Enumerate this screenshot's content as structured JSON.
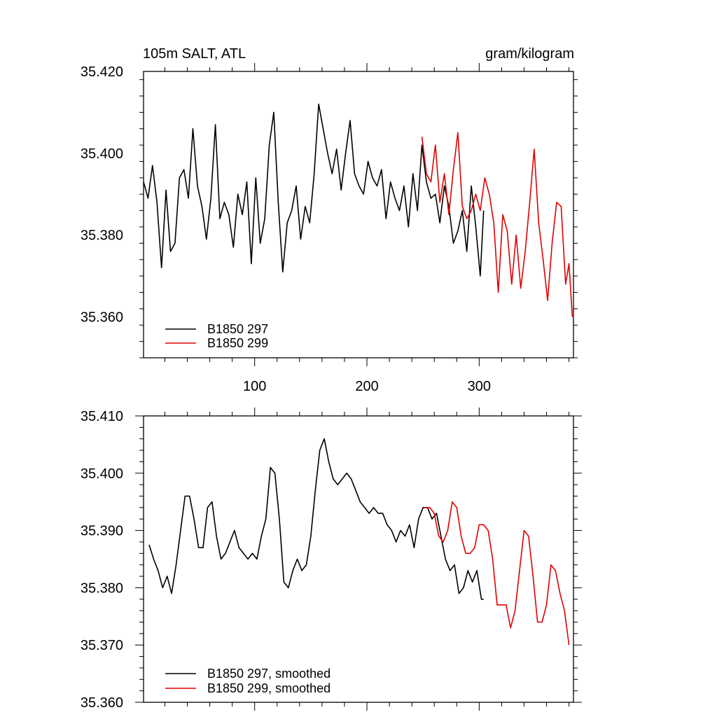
{
  "chart_data": [
    {
      "type": "line",
      "title": "105m SALT, ATL",
      "units_label": "gram/kilogram",
      "xlabel": "",
      "ylabel": "",
      "xlim": [
        1,
        384
      ],
      "ylim": [
        35.35,
        35.42
      ],
      "y_ticks": [
        35.36,
        35.38,
        35.4,
        35.42
      ],
      "y_tick_labels": [
        "35.360",
        "35.380",
        "35.400",
        "35.420"
      ],
      "x_ticks": [
        100,
        200,
        300
      ],
      "x_tick_labels": [
        "100",
        "200",
        "300"
      ],
      "legend_position": "bottom-left",
      "series": [
        {
          "name": "B1850 297",
          "color": "#000000",
          "x": [
            1,
            5,
            9,
            13,
            17,
            21,
            25,
            29,
            33,
            37,
            41,
            45,
            49,
            53,
            57,
            61,
            65,
            69,
            73,
            77,
            81,
            85,
            89,
            93,
            97,
            101,
            105,
            109,
            113,
            117,
            121,
            125,
            129,
            133,
            137,
            141,
            145,
            149,
            153,
            157,
            161,
            165,
            169,
            173,
            177,
            181,
            185,
            189,
            193,
            197,
            201,
            205,
            209,
            213,
            217,
            221,
            225,
            229,
            233,
            237,
            241,
            245,
            249,
            253,
            257,
            261,
            265,
            269,
            273,
            277,
            281,
            285,
            289,
            293,
            297,
            301,
            304
          ],
          "values": [
            35.393,
            35.389,
            35.397,
            35.388,
            35.372,
            35.391,
            35.376,
            35.378,
            35.394,
            35.396,
            35.389,
            35.406,
            35.392,
            35.387,
            35.379,
            35.389,
            35.407,
            35.384,
            35.388,
            35.385,
            35.377,
            35.39,
            35.385,
            35.393,
            35.373,
            35.394,
            35.378,
            35.384,
            35.402,
            35.41,
            35.388,
            35.371,
            35.383,
            35.386,
            35.392,
            35.379,
            35.387,
            35.383,
            35.395,
            35.412,
            35.406,
            35.4,
            35.395,
            35.401,
            35.391,
            35.4,
            35.408,
            35.395,
            35.392,
            35.39,
            35.398,
            35.394,
            35.392,
            35.396,
            35.384,
            35.393,
            35.389,
            35.386,
            35.392,
            35.382,
            35.395,
            35.386,
            35.402,
            35.393,
            35.389,
            35.39,
            35.383,
            35.392,
            35.387,
            35.378,
            35.381,
            35.386,
            35.376,
            35.392,
            35.382,
            35.37,
            35.386
          ]
        },
        {
          "name": "B1850 299",
          "color": "#e00000",
          "x": [
            249,
            253,
            257,
            261,
            265,
            269,
            273,
            277,
            281,
            285,
            289,
            293,
            297,
            301,
            305,
            309,
            313,
            317,
            321,
            325,
            329,
            333,
            337,
            341,
            345,
            349,
            353,
            357,
            361,
            365,
            369,
            373,
            377,
            380,
            383
          ],
          "values": [
            35.404,
            35.395,
            35.393,
            35.402,
            35.388,
            35.395,
            35.385,
            35.396,
            35.405,
            35.387,
            35.384,
            35.386,
            35.39,
            35.386,
            35.394,
            35.39,
            35.383,
            35.366,
            35.385,
            35.381,
            35.368,
            35.38,
            35.367,
            35.376,
            35.388,
            35.401,
            35.383,
            35.374,
            35.364,
            35.378,
            35.388,
            35.387,
            35.368,
            35.373,
            35.36
          ]
        }
      ]
    },
    {
      "type": "line",
      "title": "",
      "xlabel": "",
      "ylabel": "",
      "xlim": [
        1,
        384
      ],
      "ylim": [
        35.36,
        35.41
      ],
      "y_ticks": [
        35.36,
        35.37,
        35.38,
        35.39,
        35.4,
        35.41
      ],
      "y_tick_labels": [
        "35.360",
        "35.370",
        "35.380",
        "35.390",
        "35.400",
        "35.410"
      ],
      "legend_position": "bottom-left",
      "series": [
        {
          "name": "B1850 297, smoothed",
          "color": "#000000",
          "x": [
            6,
            10,
            14,
            18,
            22,
            26,
            30,
            34,
            38,
            42,
            46,
            50,
            54,
            58,
            62,
            66,
            70,
            74,
            78,
            82,
            86,
            90,
            94,
            98,
            102,
            106,
            110,
            114,
            118,
            122,
            126,
            130,
            134,
            138,
            142,
            146,
            150,
            154,
            158,
            162,
            166,
            170,
            174,
            178,
            182,
            186,
            190,
            194,
            198,
            202,
            206,
            210,
            214,
            218,
            222,
            226,
            230,
            234,
            238,
            242,
            246,
            250,
            254,
            258,
            262,
            266,
            270,
            274,
            278,
            282,
            286,
            290,
            294,
            298,
            302,
            304
          ],
          "values": [
            35.3875,
            35.385,
            35.383,
            35.38,
            35.382,
            35.379,
            35.384,
            35.39,
            35.396,
            35.396,
            35.392,
            35.387,
            35.387,
            35.394,
            35.395,
            35.389,
            35.385,
            35.386,
            35.388,
            35.39,
            35.387,
            35.386,
            35.385,
            35.386,
            35.385,
            35.389,
            35.392,
            35.401,
            35.4,
            35.392,
            35.381,
            35.38,
            35.383,
            35.385,
            35.383,
            35.384,
            35.389,
            35.397,
            35.404,
            35.406,
            35.402,
            35.399,
            35.398,
            35.399,
            35.4,
            35.399,
            35.397,
            35.395,
            35.394,
            35.393,
            35.394,
            35.393,
            35.393,
            35.391,
            35.39,
            35.388,
            35.39,
            35.389,
            35.391,
            35.387,
            35.392,
            35.394,
            35.394,
            35.392,
            35.393,
            35.389,
            35.385,
            35.383,
            35.384,
            35.379,
            35.38,
            35.383,
            35.381,
            35.383,
            35.378,
            35.378
          ]
        },
        {
          "name": "B1850 299, smoothed",
          "color": "#e00000",
          "x": [
            251,
            256,
            260,
            264,
            268,
            272,
            276,
            280,
            284,
            288,
            292,
            296,
            300,
            304,
            308,
            312,
            316,
            320,
            324,
            328,
            332,
            336,
            340,
            344,
            348,
            352,
            356,
            360,
            364,
            368,
            372,
            376,
            380
          ],
          "values": [
            35.394,
            35.394,
            35.393,
            35.389,
            35.388,
            35.39,
            35.395,
            35.394,
            35.389,
            35.386,
            35.386,
            35.387,
            35.391,
            35.391,
            35.39,
            35.385,
            35.377,
            35.377,
            35.377,
            35.373,
            35.376,
            35.383,
            35.39,
            35.389,
            35.382,
            35.374,
            35.374,
            35.377,
            35.384,
            35.383,
            35.379,
            35.376,
            35.37
          ]
        }
      ]
    }
  ]
}
